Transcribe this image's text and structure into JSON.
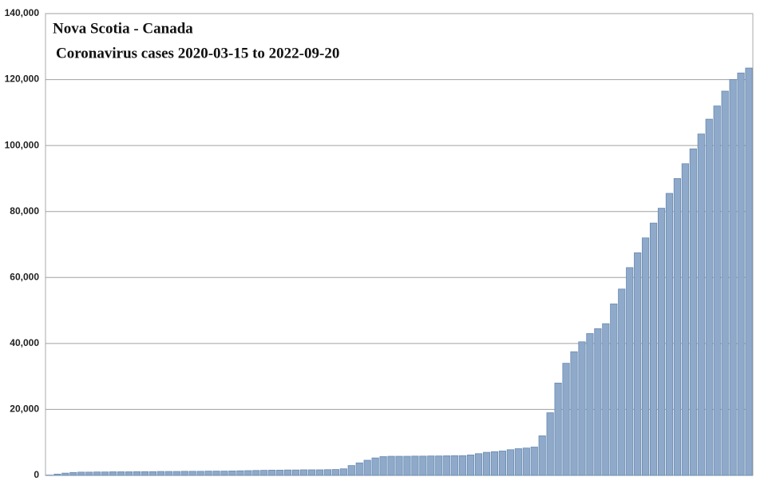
{
  "chart_data": {
    "type": "bar",
    "title": "Nova Scotia - Canada",
    "subtitle": "Coronavirus cases 2020-03-15 to 2022-09-20",
    "categories": [
      null,
      null,
      null,
      null,
      null,
      null,
      null,
      null,
      null,
      null,
      null,
      null,
      null,
      null,
      null,
      null,
      null,
      null,
      null,
      null,
      null,
      null,
      null,
      null,
      null,
      null,
      null,
      null,
      null,
      null,
      null,
      null,
      null,
      null,
      null,
      null,
      null,
      null,
      null,
      null,
      null,
      null,
      null,
      null,
      null,
      null,
      null,
      null,
      null,
      null,
      null,
      null,
      null,
      null,
      null,
      null,
      null,
      null,
      null,
      null,
      null,
      null,
      null,
      null,
      null,
      null,
      null,
      null,
      null,
      null,
      null,
      null,
      null,
      null,
      null,
      null,
      null,
      null,
      null,
      null,
      null,
      null,
      null,
      null,
      null,
      null,
      null,
      null,
      null
    ],
    "values": [
      100,
      400,
      700,
      900,
      1000,
      1000,
      1050,
      1050,
      1100,
      1100,
      1100,
      1150,
      1150,
      1150,
      1200,
      1200,
      1200,
      1250,
      1250,
      1250,
      1300,
      1300,
      1300,
      1350,
      1400,
      1450,
      1500,
      1550,
      1600,
      1600,
      1650,
      1650,
      1700,
      1700,
      1700,
      1750,
      1800,
      2000,
      3000,
      3800,
      4600,
      5300,
      5700,
      5800,
      5800,
      5800,
      5850,
      5850,
      5900,
      5900,
      5950,
      6000,
      6000,
      6200,
      6600,
      7000,
      7200,
      7400,
      7800,
      8100,
      8300,
      8600,
      12000,
      19000,
      28000,
      34000,
      37500,
      40500,
      43000,
      44500,
      46000,
      52000,
      56500,
      63000,
      67500,
      72000,
      76500,
      81000,
      85500,
      90000,
      94500,
      99000,
      103500,
      108000,
      112000,
      116500,
      120000,
      122000,
      123500
    ],
    "color": "#8ea9c9",
    "ylim": [
      0,
      140000
    ],
    "yticks": [
      0,
      {
        "value": 20000,
        "label": "20,000"
      },
      {
        "value": 40000,
        "label": "40,000"
      },
      {
        "value": 60000,
        "label": "60,000"
      },
      {
        "value": 80000,
        "label": "80,000"
      },
      {
        "value": 100000,
        "label": "100,000"
      },
      {
        "value": 120000,
        "label": "120,000"
      },
      {
        "value": 140000,
        "label": "140,000"
      }
    ],
    "grid": true
  }
}
